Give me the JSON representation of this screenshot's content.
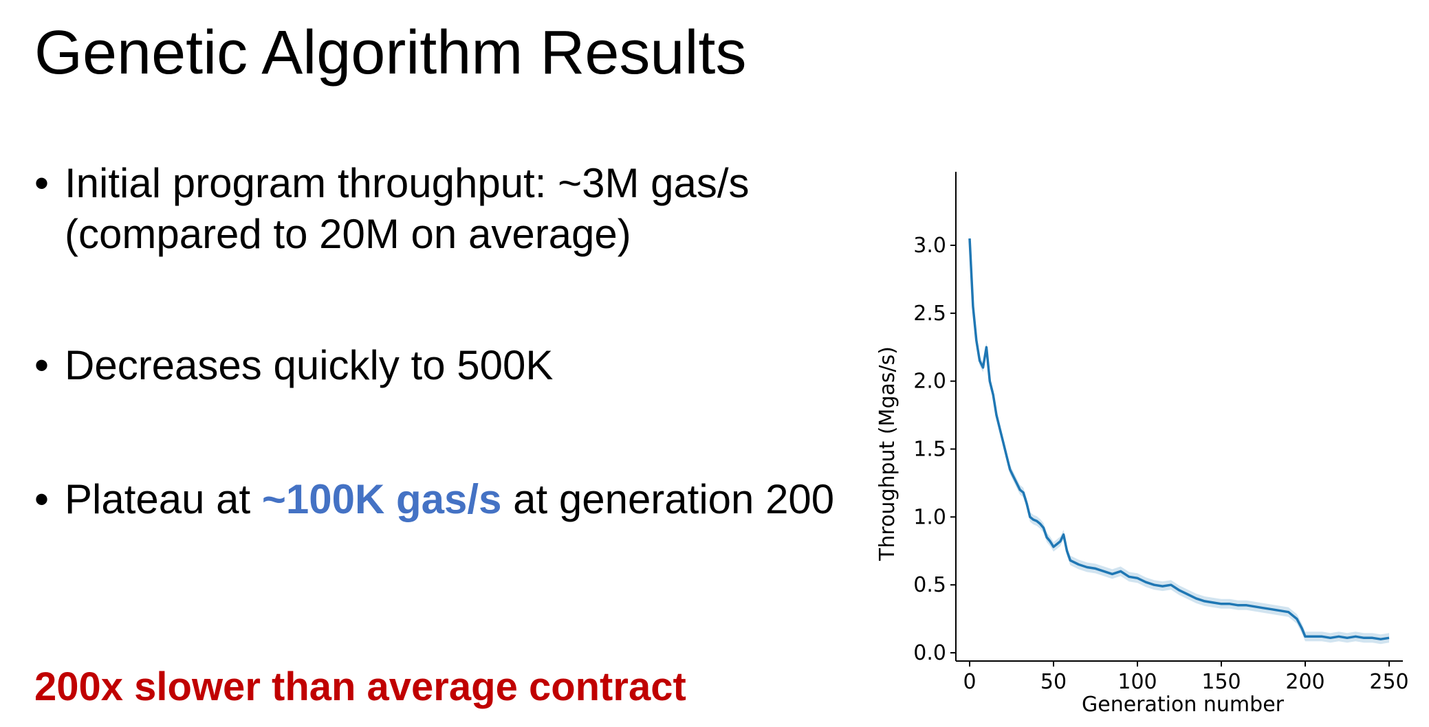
{
  "slide": {
    "title": "Genetic Algorithm Results",
    "bullets": [
      {
        "text": "Initial program throughput: ~3M gas/s (compared to 20M on average)"
      },
      {
        "text": "Decreases quickly to 500K"
      },
      {
        "pre": "Plateau at ",
        "highlight": "~100K gas/s",
        "post": " at generation 200"
      }
    ],
    "conclusion": "200x slower than average contract",
    "colors": {
      "highlight": "#4472c4",
      "conclusion": "#c00000",
      "line": "#1f77b4"
    }
  },
  "chart_data": {
    "type": "line",
    "title": "",
    "xlabel": "Generation number",
    "ylabel": "Throughput (Mgas/s)",
    "xlim": [
      0,
      250
    ],
    "ylim": [
      0,
      3.2
    ],
    "xticks": [
      0,
      50,
      100,
      150,
      200,
      250
    ],
    "yticks": [
      "0.0",
      "0.5",
      "1.0",
      "1.5",
      "2.0",
      "2.5",
      "3.0"
    ],
    "grid": false,
    "legend": "none",
    "series": [
      {
        "color": "#1f77b4",
        "x": [
          0,
          2,
          4,
          6,
          8,
          10,
          12,
          14,
          16,
          18,
          20,
          22,
          24,
          26,
          28,
          30,
          32,
          34,
          36,
          38,
          40,
          42,
          44,
          46,
          48,
          50,
          52,
          54,
          56,
          58,
          60,
          65,
          70,
          75,
          80,
          85,
          90,
          95,
          100,
          105,
          110,
          115,
          120,
          125,
          130,
          135,
          140,
          145,
          150,
          155,
          160,
          165,
          170,
          175,
          180,
          185,
          190,
          195,
          198,
          200,
          205,
          210,
          215,
          220,
          225,
          230,
          235,
          240,
          245,
          250
        ],
        "y": [
          3.05,
          2.55,
          2.3,
          2.15,
          2.1,
          2.25,
          2.0,
          1.9,
          1.75,
          1.65,
          1.55,
          1.45,
          1.35,
          1.3,
          1.25,
          1.2,
          1.18,
          1.1,
          1.0,
          0.98,
          0.97,
          0.95,
          0.92,
          0.85,
          0.82,
          0.78,
          0.8,
          0.82,
          0.87,
          0.75,
          0.68,
          0.65,
          0.63,
          0.62,
          0.6,
          0.58,
          0.6,
          0.56,
          0.55,
          0.52,
          0.5,
          0.49,
          0.5,
          0.46,
          0.43,
          0.4,
          0.38,
          0.37,
          0.36,
          0.36,
          0.35,
          0.35,
          0.34,
          0.33,
          0.32,
          0.31,
          0.3,
          0.25,
          0.18,
          0.12,
          0.12,
          0.12,
          0.11,
          0.12,
          0.11,
          0.12,
          0.11,
          0.11,
          0.1,
          0.11
        ]
      }
    ]
  }
}
